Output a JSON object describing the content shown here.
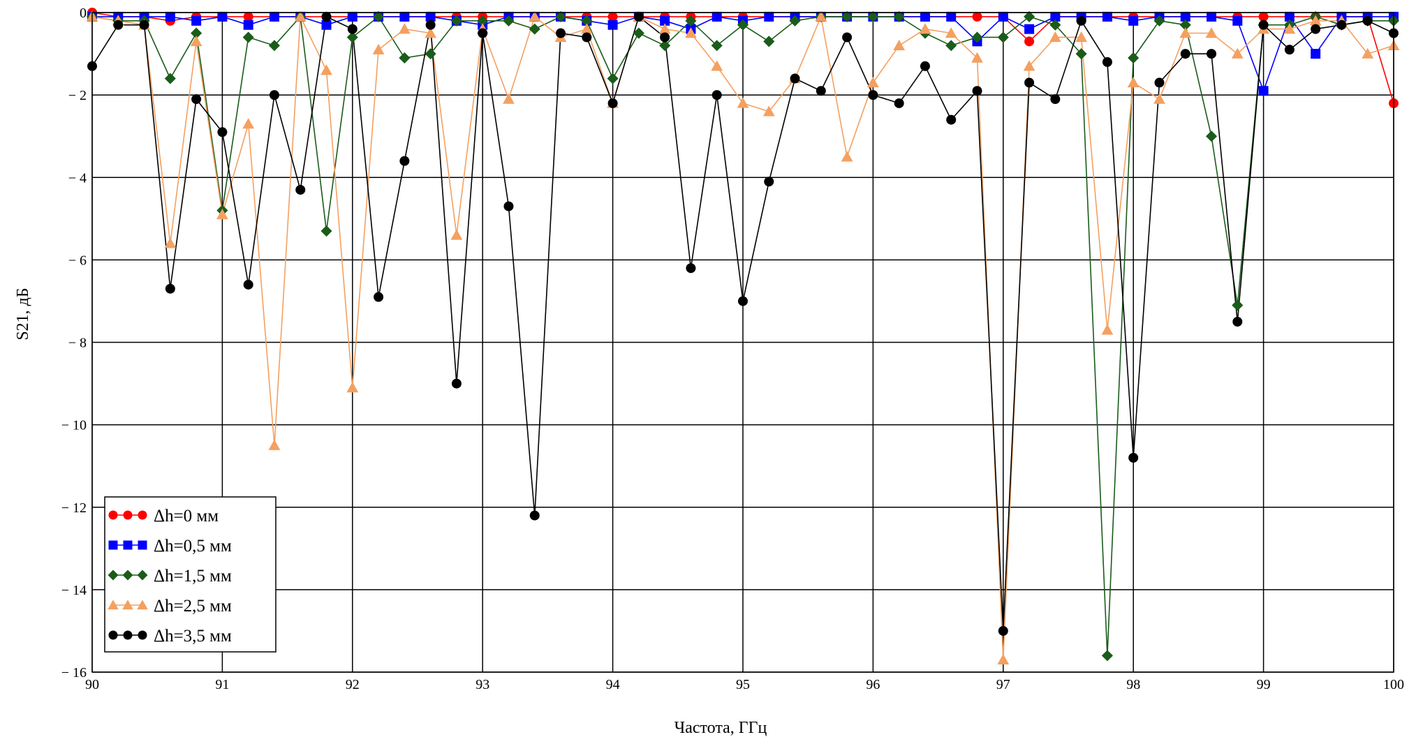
{
  "chart_data": {
    "type": "line",
    "xlabel": "Частота, ГГц",
    "ylabel": "S21, дБ",
    "xlim": [
      90,
      100
    ],
    "ylim": [
      -16,
      0
    ],
    "xticks": [
      90,
      91,
      92,
      93,
      94,
      95,
      96,
      97,
      98,
      99,
      100
    ],
    "yticks": [
      0,
      -2,
      -4,
      -6,
      -8,
      -10,
      -12,
      -14,
      -16
    ],
    "xtick_labels": [
      "90",
      "91",
      "92",
      "93",
      "94",
      "95",
      "96",
      "97",
      "98",
      "99",
      "100"
    ],
    "ytick_labels": [
      "0",
      "− 2",
      "− 4",
      "− 6",
      "− 8",
      "− 10",
      "− 12",
      "− 14",
      "− 16"
    ],
    "grid": true,
    "legend_position": "bottom-left",
    "x": [
      90.0,
      90.2,
      90.4,
      90.6,
      90.8,
      91.0,
      91.2,
      91.4,
      91.6,
      91.8,
      92.0,
      92.2,
      92.4,
      92.6,
      92.8,
      93.0,
      93.2,
      93.4,
      93.6,
      93.8,
      94.0,
      94.2,
      94.4,
      94.6,
      94.8,
      95.0,
      95.2,
      95.4,
      95.6,
      95.8,
      96.0,
      96.2,
      96.4,
      96.6,
      96.8,
      97.0,
      97.2,
      97.4,
      97.6,
      97.8,
      98.0,
      98.2,
      98.4,
      98.6,
      98.8,
      99.0,
      99.2,
      99.4,
      99.6,
      99.8,
      100.0
    ],
    "series": [
      {
        "name": "Δh=0 мм",
        "color": "#ff0000",
        "marker": "circle",
        "values": [
          0,
          -0.1,
          -0.1,
          -0.2,
          -0.1,
          -0.1,
          -0.1,
          -0.1,
          -0.1,
          -0.1,
          -0.1,
          -0.1,
          -0.1,
          -0.1,
          -0.1,
          -0.1,
          -0.1,
          -0.1,
          -0.1,
          -0.1,
          -0.1,
          -0.1,
          -0.1,
          -0.1,
          -0.1,
          -0.1,
          -0.1,
          -0.1,
          -0.1,
          -0.1,
          -0.1,
          -0.1,
          -0.1,
          -0.1,
          -0.1,
          -0.1,
          -0.7,
          -0.1,
          -0.1,
          -0.1,
          -0.1,
          -0.1,
          -0.1,
          -0.1,
          -0.1,
          -0.1,
          -0.1,
          -0.1,
          -0.1,
          -0.1,
          -2.2
        ]
      },
      {
        "name": "Δh=0,5 мм",
        "color": "#0000ff",
        "marker": "square",
        "values": [
          -0.1,
          -0.1,
          -0.1,
          -0.1,
          -0.2,
          -0.1,
          -0.3,
          -0.1,
          -0.1,
          -0.3,
          -0.1,
          -0.1,
          -0.1,
          -0.1,
          -0.2,
          -0.3,
          -0.1,
          -0.1,
          -0.1,
          -0.2,
          -0.3,
          -0.1,
          -0.2,
          -0.4,
          -0.1,
          -0.2,
          -0.1,
          -0.1,
          -0.1,
          -0.1,
          -0.1,
          -0.1,
          -0.1,
          -0.1,
          -0.7,
          -0.1,
          -0.4,
          -0.1,
          -0.1,
          -0.1,
          -0.2,
          -0.1,
          -0.1,
          -0.1,
          -0.2,
          -1.9,
          -0.1,
          -1.0,
          -0.1,
          -0.1,
          -0.1
        ]
      },
      {
        "name": "Δh=1,5 мм",
        "color": "#1a5c1a",
        "marker": "diamond",
        "values": [
          -0.1,
          -0.2,
          -0.2,
          -1.6,
          -0.5,
          -4.8,
          -0.6,
          -0.8,
          -0.1,
          -5.3,
          -0.6,
          -0.1,
          -1.1,
          -1.0,
          -0.2,
          -0.2,
          -0.2,
          -0.4,
          -0.1,
          -0.2,
          -1.6,
          -0.5,
          -0.8,
          -0.2,
          -0.8,
          -0.3,
          -0.7,
          -0.2,
          -0.1,
          -0.1,
          -0.1,
          -0.1,
          -0.5,
          -0.8,
          -0.6,
          -0.6,
          -0.1,
          -0.3,
          -1.0,
          -15.6,
          -1.1,
          -0.2,
          -0.3,
          -3.0,
          -7.1,
          -0.3,
          -0.3,
          -0.1,
          -0.3,
          -0.2,
          -0.2
        ]
      },
      {
        "name": "Δh=2,5 мм",
        "color": "#f4a060",
        "marker": "triangle",
        "values": [
          -0.1,
          -0.2,
          -0.3,
          -5.6,
          -0.7,
          -4.9,
          -2.7,
          -10.5,
          -0.1,
          -1.4,
          -9.1,
          -0.9,
          -0.4,
          -0.5,
          -5.4,
          -0.4,
          -2.1,
          -0.1,
          -0.6,
          -0.4,
          -2.2,
          -0.1,
          -0.4,
          -0.5,
          -1.3,
          -2.2,
          -2.4,
          -1.6,
          -0.1,
          -3.5,
          -1.7,
          -0.8,
          -0.4,
          -0.5,
          -1.1,
          -15.7,
          -1.3,
          -0.6,
          -0.6,
          -7.7,
          -1.7,
          -2.1,
          -0.5,
          -0.5,
          -1.0,
          -0.4,
          -0.4,
          -0.2,
          -0.2,
          -1.0,
          -0.8
        ]
      },
      {
        "name": "Δh=3,5 мм",
        "color": "#000000",
        "marker": "circle",
        "values": [
          -1.3,
          -0.3,
          -0.3,
          -6.7,
          -2.1,
          -2.9,
          -6.6,
          -2.0,
          -4.3,
          -0.1,
          -0.4,
          -6.9,
          -3.6,
          -0.3,
          -9.0,
          -0.5,
          -4.7,
          -12.2,
          -0.5,
          -0.6,
          -2.2,
          -0.1,
          -0.6,
          -6.2,
          -2.0,
          -7.0,
          -4.1,
          -1.6,
          -1.9,
          -0.6,
          -2.0,
          -2.2,
          -1.3,
          -2.6,
          -1.9,
          -15.0,
          -1.7,
          -2.1,
          -0.2,
          -1.2,
          -10.8,
          -1.7,
          -1.0,
          -1.0,
          -7.5,
          -0.3,
          -0.9,
          -0.4,
          -0.3,
          -0.2,
          -0.5
        ]
      }
    ]
  }
}
